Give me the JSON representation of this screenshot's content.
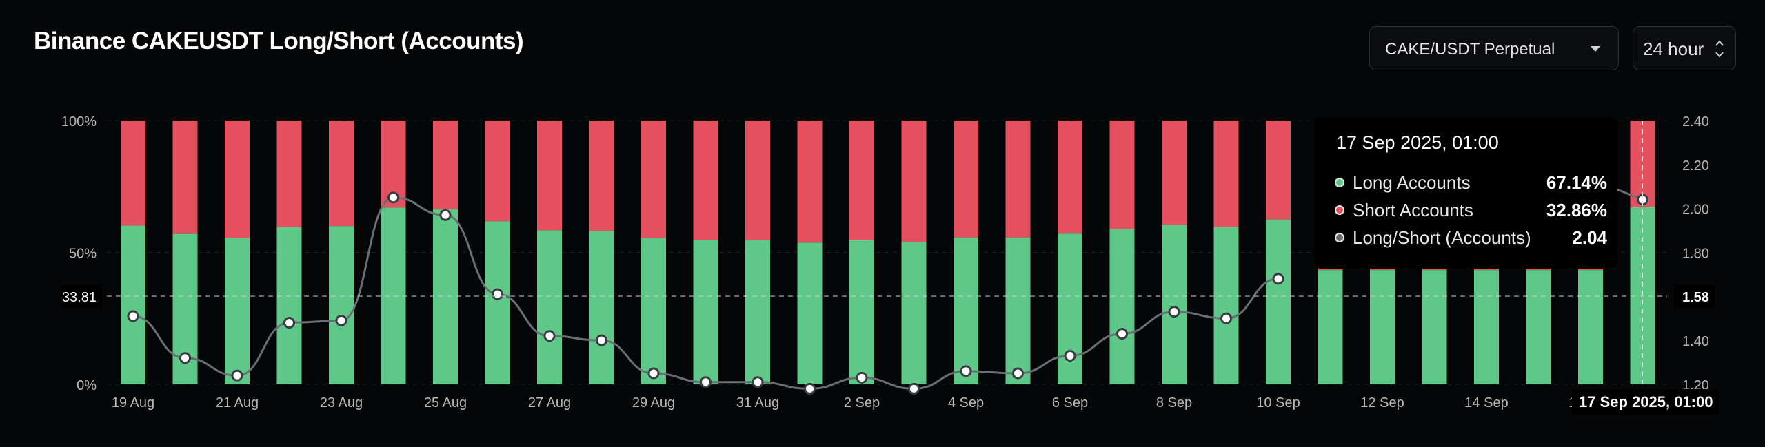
{
  "header": {
    "title": "Binance CAKEUSDT Long/Short (Accounts)",
    "pair_select": "CAKE/USDT Perpetual",
    "period_select": "24 hour"
  },
  "colors": {
    "long": "#5dc887",
    "short": "#e5515f",
    "ratio_line": "#6b6e74",
    "background": "#050608"
  },
  "chart_data": {
    "type": "bar",
    "stacked": true,
    "percent": true,
    "x_tick_labels": [
      "19 Aug",
      "21 Aug",
      "23 Aug",
      "25 Aug",
      "27 Aug",
      "29 Aug",
      "31 Aug",
      "2 Sep",
      "4 Sep",
      "6 Sep",
      "8 Sep",
      "10 Sep",
      "12 Sep",
      "14 Sep",
      "16 Sep"
    ],
    "categories": [
      "19 Aug",
      "20 Aug",
      "21 Aug",
      "22 Aug",
      "23 Aug",
      "24 Aug",
      "25 Aug",
      "26 Aug",
      "27 Aug",
      "28 Aug",
      "29 Aug",
      "30 Aug",
      "31 Aug",
      "1 Sep",
      "2 Sep",
      "3 Sep",
      "4 Sep",
      "5 Sep",
      "6 Sep",
      "7 Sep",
      "8 Sep",
      "9 Sep",
      "10 Sep",
      "11 Sep",
      "12 Sep",
      "13 Sep",
      "14 Sep",
      "15 Sep",
      "16 Sep",
      "17 Sep"
    ],
    "series": [
      {
        "name": "Long Accounts",
        "axis": "left",
        "values": [
          60.2,
          57.0,
          55.6,
          59.6,
          60.0,
          67.0,
          66.3,
          61.8,
          58.4,
          58.0,
          55.5,
          54.7,
          54.7,
          53.7,
          54.6,
          54.0,
          55.7,
          55.7,
          57.1,
          59.0,
          60.5,
          59.8,
          62.5,
          43.3,
          43.3,
          43.3,
          43.3,
          43.3,
          43.3,
          67.14
        ]
      },
      {
        "name": "Short Accounts",
        "axis": "left",
        "values": [
          39.8,
          43.0,
          44.4,
          40.4,
          40.0,
          33.0,
          33.7,
          38.2,
          41.6,
          42.0,
          44.5,
          45.3,
          45.3,
          46.3,
          45.4,
          46.0,
          44.3,
          44.3,
          42.9,
          41.0,
          39.5,
          40.2,
          37.5,
          56.7,
          56.7,
          56.7,
          56.7,
          56.7,
          56.7,
          32.86
        ]
      },
      {
        "name": "Long/Short (Accounts)",
        "axis": "right",
        "type": "line",
        "values": [
          1.51,
          1.32,
          1.24,
          1.48,
          1.49,
          2.05,
          1.97,
          1.61,
          1.42,
          1.4,
          1.25,
          1.21,
          1.21,
          1.18,
          1.23,
          1.18,
          1.26,
          1.25,
          1.33,
          1.43,
          1.53,
          1.5,
          1.68,
          null,
          null,
          null,
          null,
          null,
          null,
          2.04
        ]
      }
    ],
    "y_left": {
      "min": 0,
      "max": 100,
      "ticks": [
        "0%",
        "50%",
        "100%"
      ]
    },
    "y_right": {
      "min": 1.2,
      "max": 2.4,
      "ticks": [
        "1.20",
        "1.40",
        "1.60",
        "1.80",
        "2.00",
        "2.20",
        "2.40"
      ]
    },
    "crosshair": {
      "left_value": "33.81",
      "right_value": "1.58",
      "x_label": "17 Sep 2025, 01:00"
    },
    "grid": true
  },
  "tooltip": {
    "title": "17 Sep 2025, 01:00",
    "rows": [
      {
        "label": "Long Accounts",
        "value": "67.14%"
      },
      {
        "label": "Short Accounts",
        "value": "32.86%"
      },
      {
        "label": "Long/Short (Accounts)",
        "value": "2.04"
      }
    ]
  }
}
